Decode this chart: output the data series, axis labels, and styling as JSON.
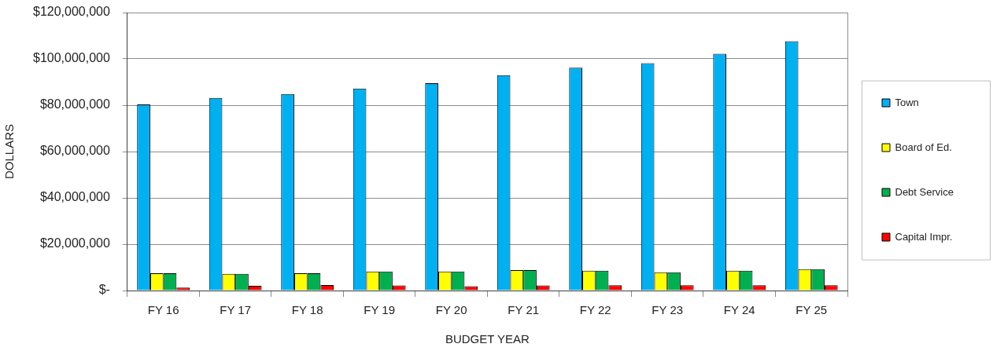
{
  "chart_data": {
    "type": "bar",
    "xlabel": "BUDGET YEAR",
    "ylabel": "DOLLARS",
    "categories": [
      "FY 16",
      "FY 17",
      "FY 18",
      "FY 19",
      "FY 20",
      "FY 21",
      "FY 22",
      "FY 23",
      "FY 24",
      "FY 25"
    ],
    "series": [
      {
        "name": "Town",
        "color": "#00b0f0",
        "values": [
          80300000,
          83100000,
          84800000,
          87200000,
          89500000,
          93000000,
          96200000,
          98100000,
          102200000,
          107600000
        ]
      },
      {
        "name": "Board of Ed.",
        "color": "#ffff00",
        "values": [
          7500000,
          7200000,
          7500000,
          8200000,
          8200000,
          8800000,
          8600000,
          7900000,
          8600000,
          9200000
        ]
      },
      {
        "name": "Debt Service",
        "color": "#00b050",
        "values": [
          7500000,
          7200000,
          7500000,
          8200000,
          8200000,
          8800000,
          8600000,
          7900000,
          8600000,
          9200000
        ]
      },
      {
        "name": "Capital Impr.",
        "color": "#ff0000",
        "values": [
          1300000,
          2000000,
          2400000,
          2200000,
          1900000,
          2200000,
          2300000,
          2300000,
          2300000,
          2300000
        ]
      }
    ],
    "ylim": [
      0,
      120000000
    ],
    "yticks": [
      {
        "value": 0,
        "label": "$-"
      },
      {
        "value": 20000000,
        "label": "$20,000,000"
      },
      {
        "value": 40000000,
        "label": "$40,000,000"
      },
      {
        "value": 60000000,
        "label": "$60,000,000"
      },
      {
        "value": 80000000,
        "label": "$80,000,000"
      },
      {
        "value": 100000000,
        "label": "$100,000,000"
      },
      {
        "value": 120000000,
        "label": "$120,000,000"
      }
    ],
    "grid": "y",
    "legend": "right"
  }
}
